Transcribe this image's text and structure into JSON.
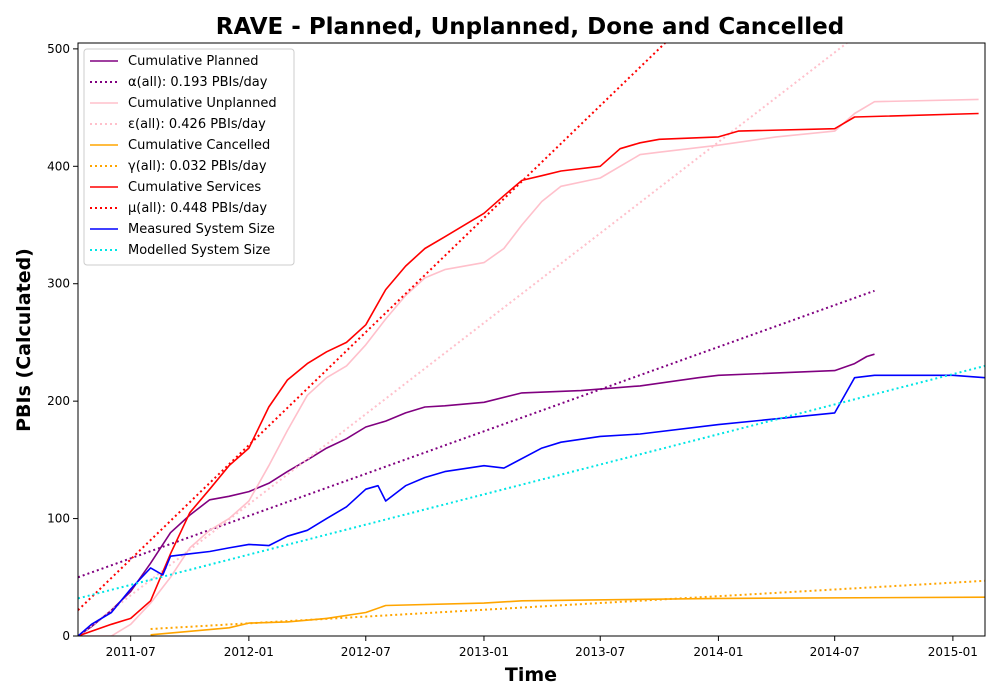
{
  "chart_data": {
    "type": "line",
    "title": "RAVE - Planned, Unplanned, Done  and Cancelled",
    "xlabel": "Time",
    "ylabel": "PBIs (Calculated)",
    "xlim": [
      "2011-04-10",
      "2015-02-20"
    ],
    "ylim": [
      0,
      505
    ],
    "x_ticks": [
      "2011-07",
      "2012-01",
      "2012-07",
      "2013-01",
      "2013-07",
      "2014-01",
      "2014-07",
      "2015-01"
    ],
    "y_ticks": [
      0,
      100,
      200,
      300,
      400,
      500
    ],
    "grid": false,
    "legend_position": "top-left",
    "series": [
      {
        "name": "Cumulative Planned",
        "color": "#800080",
        "style": "solid",
        "x": [
          "2011-04-10",
          "2011-05-01",
          "2011-06-01",
          "2011-07-01",
          "2011-08-01",
          "2011-09-01",
          "2011-10-01",
          "2011-11-01",
          "2011-12-01",
          "2012-01-01",
          "2012-02-01",
          "2012-03-01",
          "2012-04-01",
          "2012-05-01",
          "2012-06-01",
          "2012-07-01",
          "2012-08-01",
          "2012-09-01",
          "2012-10-01",
          "2012-11-01",
          "2013-01-01",
          "2013-03-01",
          "2013-06-01",
          "2013-09-01",
          "2013-12-01",
          "2014-01-01",
          "2014-07-01",
          "2014-08-01",
          "2014-08-20",
          "2014-09-01"
        ],
        "y": [
          0,
          8,
          22,
          38,
          62,
          88,
          103,
          116,
          119,
          123,
          130,
          140,
          150,
          160,
          168,
          178,
          183,
          190,
          195,
          196,
          199,
          207,
          209,
          213,
          220,
          222,
          226,
          232,
          238,
          240
        ]
      },
      {
        "name": "α(all): 0.193 PBIs/day",
        "color": "#800080",
        "style": "dotted",
        "x": [
          "2011-04-10",
          "2014-09-01"
        ],
        "y": [
          50,
          294
        ]
      },
      {
        "name": "Cumulative Unplanned",
        "color": "#ffc0cb",
        "style": "solid",
        "x": [
          "2011-04-10",
          "2011-06-01",
          "2011-07-01",
          "2011-08-01",
          "2011-09-01",
          "2011-10-01",
          "2011-11-01",
          "2011-12-01",
          "2012-01-01",
          "2012-02-01",
          "2012-03-01",
          "2012-04-01",
          "2012-05-01",
          "2012-06-01",
          "2012-07-01",
          "2012-08-01",
          "2012-09-01",
          "2012-10-01",
          "2012-11-01",
          "2013-01-01",
          "2013-02-01",
          "2013-03-01",
          "2013-04-01",
          "2013-05-01",
          "2013-07-01",
          "2013-08-01",
          "2013-09-01",
          "2013-10-01",
          "2014-01-01",
          "2014-04-01",
          "2014-07-01",
          "2014-08-01",
          "2014-09-01",
          "2015-02-10"
        ],
        "y": [
          0,
          0,
          10,
          28,
          50,
          75,
          90,
          100,
          115,
          145,
          175,
          205,
          220,
          230,
          248,
          270,
          290,
          305,
          312,
          318,
          330,
          350,
          370,
          383,
          390,
          400,
          410,
          412,
          418,
          425,
          430,
          445,
          455,
          457
        ]
      },
      {
        "name": "ε(all): 0.426 PBIs/day",
        "color": "#ffc0cb",
        "style": "dotted",
        "x": [
          "2011-04-10",
          "2014-07-20"
        ],
        "y": [
          0,
          505
        ]
      },
      {
        "name": "Cumulative Cancelled",
        "color": "#ffa500",
        "style": "solid",
        "x": [
          "2011-08-01",
          "2011-10-01",
          "2011-12-01",
          "2012-01-01",
          "2012-03-01",
          "2012-05-01",
          "2012-07-01",
          "2012-08-01",
          "2013-01-01",
          "2013-03-01",
          "2014-01-01",
          "2015-02-20"
        ],
        "y": [
          1,
          4,
          7,
          11,
          12,
          15,
          20,
          26,
          28,
          30,
          32,
          33
        ]
      },
      {
        "name": "γ(all): 0.032 PBIs/day",
        "color": "#ffa500",
        "style": "dotted",
        "x": [
          "2011-08-01",
          "2015-02-20"
        ],
        "y": [
          6,
          47
        ]
      },
      {
        "name": "Cumulative Services",
        "color": "#ff0000",
        "style": "solid",
        "x": [
          "2011-04-10",
          "2011-06-01",
          "2011-07-01",
          "2011-08-01",
          "2011-09-01",
          "2011-10-01",
          "2011-11-01",
          "2011-12-01",
          "2012-01-01",
          "2012-02-01",
          "2012-03-01",
          "2012-04-01",
          "2012-05-01",
          "2012-06-01",
          "2012-07-01",
          "2012-08-01",
          "2012-09-01",
          "2012-10-01",
          "2012-11-01",
          "2013-01-01",
          "2013-02-01",
          "2013-03-01",
          "2013-04-01",
          "2013-05-01",
          "2013-07-01",
          "2013-08-01",
          "2013-09-01",
          "2013-10-01",
          "2014-01-01",
          "2014-02-01",
          "2014-07-01",
          "2014-08-01",
          "2015-02-10"
        ],
        "y": [
          0,
          10,
          15,
          30,
          70,
          105,
          125,
          145,
          160,
          195,
          218,
          232,
          242,
          250,
          265,
          295,
          315,
          330,
          340,
          360,
          375,
          388,
          392,
          396,
          400,
          415,
          420,
          423,
          425,
          430,
          432,
          442,
          445
        ]
      },
      {
        "name": "μ(all): 0.448 PBIs/day",
        "color": "#ff0000",
        "style": "dotted",
        "x": [
          "2011-04-10",
          "2013-10-10"
        ],
        "y": [
          22,
          505
        ]
      },
      {
        "name": "Measured System Size",
        "color": "#0000ff",
        "style": "solid",
        "x": [
          "2011-04-10",
          "2011-05-01",
          "2011-06-01",
          "2011-07-01",
          "2011-08-01",
          "2011-08-20",
          "2011-09-01",
          "2011-10-01",
          "2011-11-01",
          "2011-12-01",
          "2012-01-01",
          "2012-02-01",
          "2012-03-01",
          "2012-04-01",
          "2012-05-01",
          "2012-06-01",
          "2012-07-01",
          "2012-07-20",
          "2012-08-01",
          "2012-09-01",
          "2012-10-01",
          "2012-11-01",
          "2013-01-01",
          "2013-02-01",
          "2013-04-01",
          "2013-05-01",
          "2013-07-01",
          "2013-09-01",
          "2014-01-01",
          "2014-04-01",
          "2014-07-01",
          "2014-08-01",
          "2014-09-01",
          "2015-01-01",
          "2015-02-20"
        ],
        "y": [
          0,
          10,
          20,
          40,
          58,
          52,
          68,
          70,
          72,
          75,
          78,
          77,
          85,
          90,
          100,
          110,
          125,
          128,
          115,
          128,
          135,
          140,
          145,
          143,
          160,
          165,
          170,
          172,
          180,
          185,
          190,
          220,
          222,
          222,
          220
        ]
      },
      {
        "name": "Modelled System Size",
        "color": "#00e5e5",
        "style": "dotted",
        "x": [
          "2011-04-10",
          "2015-02-20"
        ],
        "y": [
          32,
          230
        ]
      }
    ]
  }
}
